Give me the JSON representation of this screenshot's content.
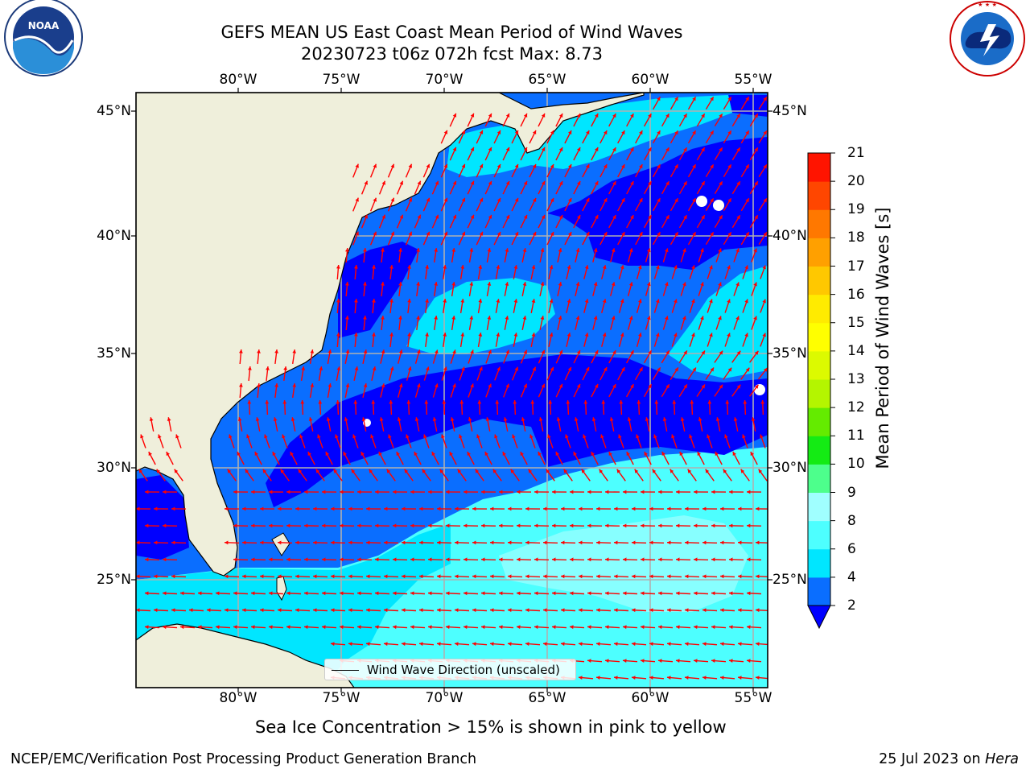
{
  "title": {
    "line1": "GEFS MEAN US East Coast Mean Period of Wind Waves",
    "line2": "20230723 t06z 072h fcst   Max: 8.73"
  },
  "logos": {
    "left": {
      "name": "noaa-logo",
      "text": "NOAA",
      "ring_text": "NATIONAL OCEANIC AND ATMOSPHERIC ADMINISTRATION · U.S. DEPARTMENT OF COMMERCE"
    },
    "right": {
      "name": "national-weather-service-logo",
      "ring_text": "NATIONAL WEATHER SERVICE"
    }
  },
  "axes": {
    "longitude_labels": [
      "80°W",
      "75°W",
      "70°W",
      "65°W",
      "60°W",
      "55°W"
    ],
    "latitude_labels": [
      "45°N",
      "40°N",
      "35°N",
      "30°N",
      "25°N"
    ]
  },
  "colorbar": {
    "label": "Mean Period of Wind Waves [s]",
    "ticks": [
      "2",
      "4",
      "6",
      "8",
      "9",
      "10",
      "11",
      "12",
      "13",
      "14",
      "15",
      "16",
      "17",
      "18",
      "19",
      "20",
      "21"
    ],
    "under_color": "#0000ff",
    "colors": [
      "#0a6eff",
      "#00e6ff",
      "#4dffff",
      "#a0ffff",
      "#4dff8c",
      "#14eb14",
      "#64eb00",
      "#b4f500",
      "#dcfa00",
      "#ffff00",
      "#ffeb00",
      "#ffc800",
      "#ffa000",
      "#ff7800",
      "#ff4600",
      "#ff1400"
    ]
  },
  "map_colors": {
    "land": "#efefdb",
    "deep_blue": "#0000ff",
    "blue": "#0a6eff",
    "cyan": "#00e6ff",
    "light_cyan": "#4dffff",
    "pale_cyan": "#a0ffff",
    "arrow": "#ff0000",
    "grid": "#b0b0b0"
  },
  "legend": {
    "label": "Wind Wave Direction (unscaled)"
  },
  "note": "Sea Ice Concentration > 15% is shown in pink to yellow",
  "footer": {
    "left": "NCEP/EMC/Verification Post Processing Product Generation Branch",
    "right_date": "25 Jul 2023 on ",
    "right_machine": "Hera"
  }
}
